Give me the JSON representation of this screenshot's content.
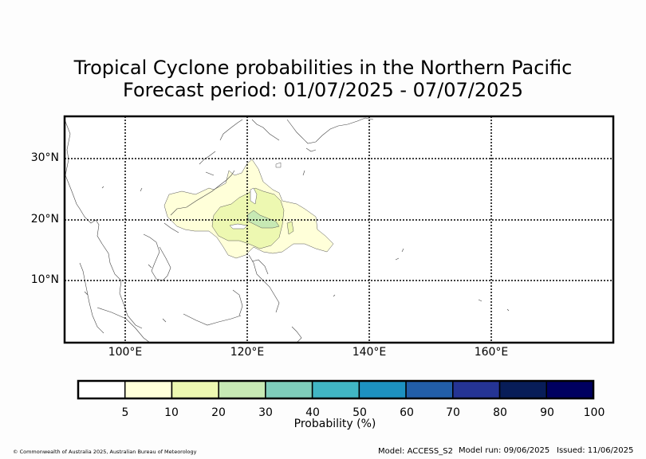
{
  "title_line1": "Tropical Cyclone probabilities in the Northern Pacific",
  "title_line2": "Forecast period: 01/07/2025 - 07/07/2025",
  "map": {
    "lat_labels": [
      "30°N",
      "20°N",
      "10°N"
    ],
    "lon_labels": [
      "100°E",
      "120°E",
      "140°E",
      "160°E"
    ],
    "probability_regions": [
      {
        "threshold": 5,
        "color": "#ffffd9",
        "area": "South China Sea to east of Luzon and Taiwan"
      },
      {
        "threshold": 10,
        "color": "#edf8b1",
        "area": "Near Luzon Strait"
      },
      {
        "threshold": 20,
        "color": "#c7e9b4",
        "area": "East of northern Luzon"
      }
    ]
  },
  "colorbar": {
    "colors": [
      "#ffffff",
      "#ffffd9",
      "#edf8b1",
      "#c7e9b4",
      "#7fcdbb",
      "#41b6c4",
      "#1d91c0",
      "#225ea8",
      "#253494",
      "#081d58",
      "#000060"
    ],
    "labels": [
      "5",
      "10",
      "20",
      "30",
      "40",
      "50",
      "60",
      "70",
      "80",
      "90",
      "100"
    ],
    "title": "Probability (%)"
  },
  "footer": {
    "credit": "© Commonwealth of Australia 2025, Australian Bureau of Meteorology",
    "model": "Model: ACCESS_S2",
    "model_run": "Model run: 09/06/2025",
    "issued": "Issued: 11/06/2025"
  }
}
